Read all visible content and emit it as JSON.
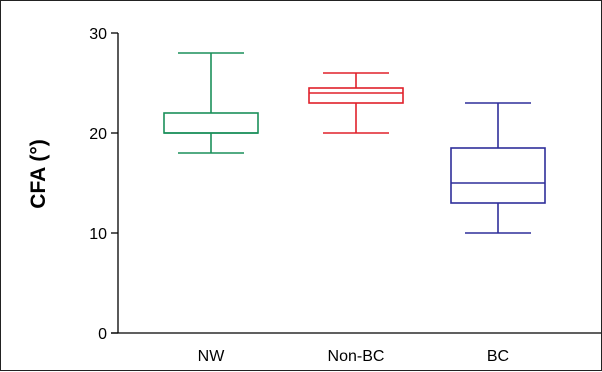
{
  "chart_data": {
    "type": "boxplot",
    "title": "",
    "xlabel": "",
    "ylabel": "CFA (°)",
    "ylim": [
      0,
      30
    ],
    "yticks": [
      0,
      10,
      20,
      30
    ],
    "grid": false,
    "categories": [
      "NW",
      "Non-BC",
      "BC"
    ],
    "series": [
      {
        "category": "NW",
        "min": 18,
        "q1": 20,
        "median": 20,
        "q3": 22,
        "max": 28,
        "color": "#1a8f5a"
      },
      {
        "category": "Non-BC",
        "min": 20,
        "q1": 23,
        "median": 24,
        "q3": 24.5,
        "max": 26,
        "color": "#e0202a"
      },
      {
        "category": "BC",
        "min": 10,
        "q1": 13,
        "median": 15,
        "q3": 18.5,
        "max": 23,
        "color": "#2e2e9a"
      }
    ]
  }
}
